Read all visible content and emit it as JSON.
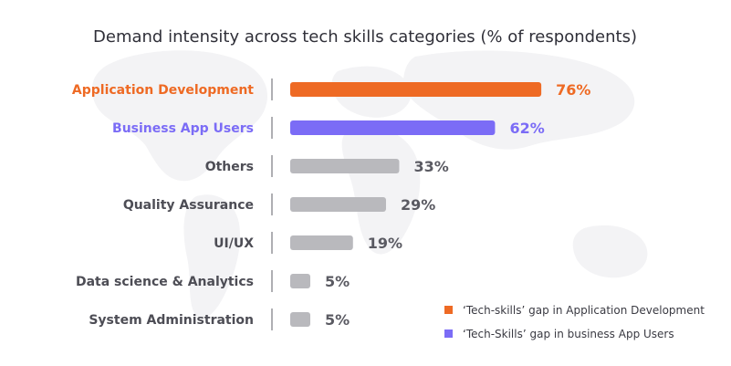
{
  "chart_data": {
    "type": "bar",
    "orientation": "horizontal",
    "title": "Demand intensity across tech skills categories (% of respondents)",
    "categories": [
      "Application Development",
      "Business App Users",
      "Others",
      "Quality Assurance",
      "UI/UX",
      "Data science & Analytics",
      "System Administration"
    ],
    "values": [
      76,
      62,
      33,
      29,
      19,
      5,
      5
    ],
    "value_labels": [
      "76%",
      "62%",
      "33%",
      "29%",
      "19%",
      "5%",
      "5%"
    ],
    "xlim": [
      0,
      100
    ],
    "grid": false,
    "colors": {
      "application_development": "#ee6a24",
      "business_app_users": "#7b6cf6",
      "default_bar": "#b9b9bd",
      "default_label": "#4d4d55",
      "default_value": "#5a5a62"
    },
    "highlight": {
      "Application Development": "application_development",
      "Business App Users": "business_app_users"
    },
    "legend": {
      "position": "bottom-right",
      "items": [
        {
          "label": "‘Tech-skills’ gap in Application Development",
          "color": "#ee6a24"
        },
        {
          "label": "‘Tech-Skills’ gap in business App Users",
          "color": "#7b6cf6"
        }
      ]
    }
  }
}
